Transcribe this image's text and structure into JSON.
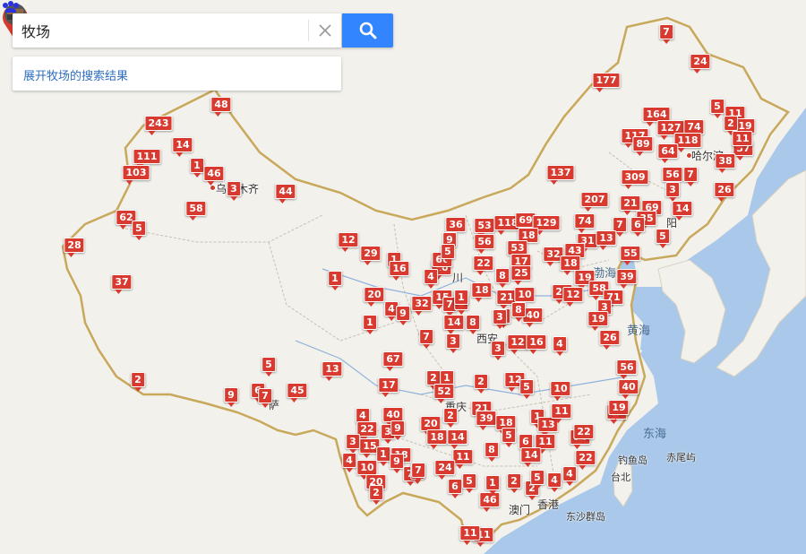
{
  "search": {
    "value": "牧场",
    "placeholder": "",
    "clear_icon": "close-icon",
    "search_icon": "search-icon",
    "accent": "#3385ff"
  },
  "results_link": "展开牧场的搜索结果",
  "colors": {
    "marker": "#d83a2f",
    "sea": "#a9c8ea",
    "land": "#f3f1ec",
    "border": "#c8a85a"
  },
  "cities": {
    "urumqi": "乌鲁木齐",
    "harbin": "哈尔滨",
    "chuan": "川",
    "xian": "西安",
    "chongqing": "重庆",
    "hongkong": "香港",
    "aomen": "澳门",
    "shenyang": "阳",
    "pu": "萨"
  },
  "seas": {
    "bohai": "渤海",
    "huanghai": "黄海",
    "donghai": "东海"
  },
  "islands": {
    "diaoyu": "钓鱼岛",
    "chiwei": "赤尾屿",
    "taibei": "台北",
    "dongsha": "东沙群岛"
  },
  "markers": {
    "m1": "7",
    "m2": "24",
    "m3": "177",
    "m4": "164",
    "m5": "127",
    "m6": "74",
    "m7": "5",
    "m8": "11",
    "m9": "19",
    "m10": "2",
    "m11": "117",
    "m12": "89",
    "m13": "118",
    "m14": "64",
    "m15": "37",
    "m16": "38",
    "m17": "11",
    "m18": "243",
    "m19": "48",
    "m20": "14",
    "m21": "111",
    "m22": "1",
    "m23": "46",
    "m24": "103",
    "m25": "3",
    "m26": "44",
    "m27": "58",
    "m28": "62",
    "m29": "5",
    "m30": "28",
    "m31": "37",
    "m32": "137",
    "m33": "309",
    "m34": "56",
    "m35": "7",
    "m36": "3",
    "m37": "26",
    "m38": "207",
    "m39": "21",
    "m40": "69",
    "m41": "14",
    "m42": "35",
    "m43": "7",
    "m44": "6",
    "m45": "5",
    "m46": "74",
    "m47": "36",
    "m48": "53",
    "m49": "118",
    "m50": "69",
    "m51": "129",
    "m52": "9",
    "m53": "56",
    "m54": "18",
    "m55": "31",
    "m56": "13",
    "m57": "12",
    "m58": "29",
    "m59": "1",
    "m60": "16",
    "m61": "55",
    "m62": "22",
    "m63": "53",
    "m64": "43",
    "m65": "32",
    "m66": "10",
    "m67": "66",
    "m68": "5",
    "m69": "17",
    "m70": "18",
    "m71": "25",
    "m72": "8",
    "m73": "19",
    "m74": "39",
    "m75": "58",
    "m76": "1",
    "m77": "20",
    "m78": "4",
    "m79": "18",
    "m80": "21",
    "m81": "10",
    "m82": "26",
    "m83": "15",
    "m84": "32",
    "m85": "7",
    "m86": "1",
    "m87": "4",
    "m88": "9",
    "m89": "12",
    "m90": "71",
    "m91": "3",
    "m92": "40",
    "m93": "6",
    "m94": "14",
    "m95": "8",
    "m96": "1",
    "m97": "19",
    "m98": "7",
    "m99": "3",
    "m100": "12",
    "m101": "16",
    "m102": "26",
    "m103": "3",
    "m104": "4",
    "m105": "67",
    "m106": "5",
    "m107": "13",
    "m108": "2",
    "m109": "9",
    "m110": "6",
    "m111": "7",
    "m112": "45",
    "m113": "17",
    "m114": "2",
    "m115": "1",
    "m116": "52",
    "m117": "2",
    "m118": "12",
    "m119": "5",
    "m120": "10",
    "m121": "56",
    "m122": "40",
    "m123": "4",
    "m124": "40",
    "m125": "20",
    "m126": "2",
    "m127": "21",
    "m128": "39",
    "m129": "18",
    "m130": "1",
    "m131": "13",
    "m132": "11",
    "m133": "19",
    "m134": "3",
    "m135": "22",
    "m136": "18",
    "m137": "14",
    "m138": "8",
    "m139": "5",
    "m140": "6",
    "m141": "11",
    "m142": "10",
    "m143": "22",
    "m144": "15",
    "m145": "3",
    "m146": "1",
    "m147": "18",
    "m148": "11",
    "m149": "24",
    "m150": "4",
    "m151": "10",
    "m152": "9",
    "m153": "7",
    "m154": "14",
    "m155": "20",
    "m156": "2",
    "m157": "6",
    "m158": "5",
    "m159": "46",
    "m160": "4",
    "m161": "2",
    "m162": "1",
    "m163": "11",
    "m164": "22",
    "m165": "4",
    "m166": "9",
    "m167": "7",
    "m168": "19",
    "m169": "3",
    "m170": "2",
    "m171": "8",
    "m172": "11",
    "m173": "1",
    "m174": "7",
    "m175": "5"
  }
}
